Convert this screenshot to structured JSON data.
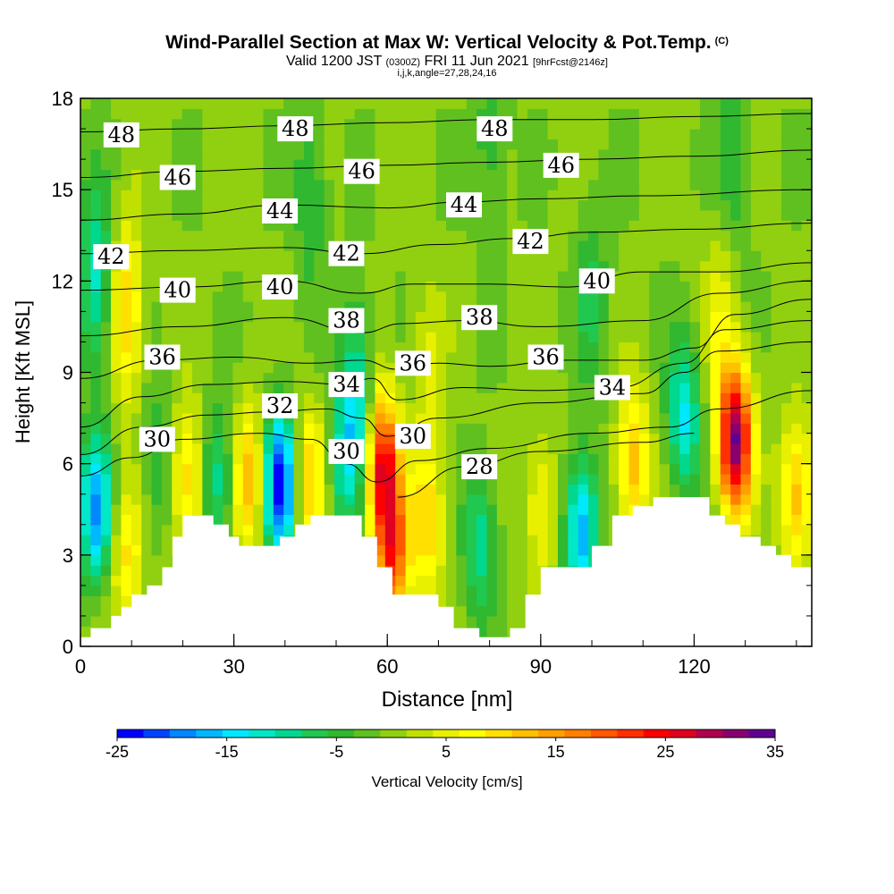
{
  "header": {
    "title": "Wind-Parallel Section at Max W: Vertical Velocity & Pot.Temp.",
    "copyright": "(C)",
    "valid_prefix": "Valid 1200 JST",
    "valid_utc": "(0300Z)",
    "valid_date": "FRI 11 Jun 2021",
    "forecast": "[9hrFcst@2146z]",
    "indices": "i,j,k,angle=27,28,24,16"
  },
  "chart_data": {
    "type": "heatmap",
    "xlabel": "Distance [nm]",
    "ylabel": "Height [Kft MSL]",
    "xlim": [
      0,
      143
    ],
    "ylim": [
      0,
      18
    ],
    "x_ticks": [
      0,
      30,
      60,
      90,
      120
    ],
    "y_ticks": [
      0,
      3,
      6,
      9,
      12,
      15,
      18
    ],
    "colorbar": {
      "label": "Vertical Velocity [cm/s]",
      "min": -25,
      "max": 35,
      "step": 2.5,
      "tick_labels": [
        "-25",
        "-15",
        "-5",
        "5",
        "15",
        "25",
        "35"
      ],
      "colors": [
        "#0000ff",
        "#0044ff",
        "#0088ff",
        "#00b8ff",
        "#00e8ff",
        "#00e8c8",
        "#00d890",
        "#20c850",
        "#30b830",
        "#60c020",
        "#90d010",
        "#c0e000",
        "#e8f000",
        "#ffff00",
        "#ffe000",
        "#ffc000",
        "#ffa000",
        "#ff8000",
        "#ff5800",
        "#ff3000",
        "#ff0000",
        "#e00020",
        "#b00050",
        "#880070",
        "#600090"
      ]
    },
    "terrain_kft": [
      [
        0,
        0.3
      ],
      [
        2,
        0.3
      ],
      [
        2,
        0.6
      ],
      [
        6,
        0.6
      ],
      [
        6,
        1.0
      ],
      [
        8,
        1.0
      ],
      [
        8,
        1.3
      ],
      [
        10,
        1.3
      ],
      [
        10,
        1.7
      ],
      [
        13,
        1.7
      ],
      [
        13,
        2.0
      ],
      [
        16,
        2.0
      ],
      [
        16,
        2.6
      ],
      [
        18,
        2.6
      ],
      [
        18,
        3.6
      ],
      [
        20,
        3.6
      ],
      [
        20,
        4.3
      ],
      [
        26,
        4.3
      ],
      [
        26,
        4.0
      ],
      [
        29,
        4.0
      ],
      [
        29,
        3.6
      ],
      [
        31,
        3.6
      ],
      [
        31,
        3.3
      ],
      [
        39,
        3.3
      ],
      [
        39,
        3.6
      ],
      [
        42,
        3.6
      ],
      [
        42,
        4.0
      ],
      [
        45,
        4.0
      ],
      [
        45,
        4.3
      ],
      [
        55,
        4.3
      ],
      [
        55,
        3.6
      ],
      [
        58,
        3.6
      ],
      [
        58,
        2.6
      ],
      [
        61,
        2.6
      ],
      [
        61,
        1.7
      ],
      [
        70,
        1.7
      ],
      [
        70,
        1.3
      ],
      [
        73,
        1.3
      ],
      [
        73,
        0.6
      ],
      [
        78,
        0.6
      ],
      [
        78,
        0.3
      ],
      [
        84,
        0.3
      ],
      [
        84,
        0.6
      ],
      [
        87,
        0.6
      ],
      [
        87,
        1.7
      ],
      [
        90,
        1.7
      ],
      [
        90,
        2.6
      ],
      [
        100,
        2.6
      ],
      [
        100,
        3.3
      ],
      [
        104,
        3.3
      ],
      [
        104,
        4.3
      ],
      [
        108,
        4.3
      ],
      [
        108,
        4.6
      ],
      [
        112,
        4.6
      ],
      [
        112,
        4.9
      ],
      [
        123,
        4.9
      ],
      [
        123,
        4.3
      ],
      [
        126,
        4.3
      ],
      [
        126,
        4.0
      ],
      [
        129,
        4.0
      ],
      [
        129,
        3.6
      ],
      [
        133,
        3.6
      ],
      [
        133,
        3.3
      ],
      [
        136,
        3.3
      ],
      [
        136,
        3.0
      ],
      [
        139,
        3.0
      ],
      [
        139,
        2.6
      ],
      [
        143,
        2.6
      ]
    ],
    "vertical_velocity_features": [
      {
        "x": 3,
        "y": 4.5,
        "w": -18
      },
      {
        "x": 3,
        "y": 12.0,
        "w": -12
      },
      {
        "x": 9,
        "y": 11.0,
        "w": 12
      },
      {
        "x": 9,
        "y": 3.0,
        "w": 10
      },
      {
        "x": 15,
        "y": 6.0,
        "w": -6
      },
      {
        "x": 21,
        "y": 5.5,
        "w": 12
      },
      {
        "x": 27,
        "y": 5.5,
        "w": -10
      },
      {
        "x": 33,
        "y": 5.5,
        "w": 14
      },
      {
        "x": 39,
        "y": 5.3,
        "w": -25
      },
      {
        "x": 45,
        "y": 5.5,
        "w": 12
      },
      {
        "x": 51,
        "y": 6.0,
        "w": -8
      },
      {
        "x": 54,
        "y": 8.0,
        "w": -14
      },
      {
        "x": 59,
        "y": 6.0,
        "w": 26
      },
      {
        "x": 61,
        "y": 3.0,
        "w": 22
      },
      {
        "x": 68,
        "y": 4.0,
        "w": 12
      },
      {
        "x": 78,
        "y": 3.5,
        "w": -10
      },
      {
        "x": 90,
        "y": 4.5,
        "w": 8
      },
      {
        "x": 98,
        "y": 3.8,
        "w": -18
      },
      {
        "x": 108,
        "y": 6.0,
        "w": 14
      },
      {
        "x": 118,
        "y": 7.5,
        "w": -14
      },
      {
        "x": 128,
        "y": 6.8,
        "w": 34
      },
      {
        "x": 140,
        "y": 5.0,
        "w": 14
      },
      {
        "x": 125,
        "y": 11.0,
        "w": 6
      },
      {
        "x": 100,
        "y": 11.5,
        "w": -6
      },
      {
        "x": 45,
        "y": 15.0,
        "w": -6
      },
      {
        "x": 80,
        "y": 16.5,
        "w": -5
      },
      {
        "x": 128,
        "y": 16.0,
        "w": -6
      },
      {
        "x": 68,
        "y": 9.0,
        "w": 5
      }
    ],
    "theta_contours": [
      {
        "value": 28,
        "label": "28",
        "pts": [
          [
            62,
            4.9
          ],
          [
            75,
            5.9
          ],
          [
            90,
            6.4
          ],
          [
            110,
            6.7
          ],
          [
            120,
            7.0
          ]
        ]
      },
      {
        "value": 30,
        "label": "30",
        "pts": [
          [
            0,
            5.6
          ],
          [
            10,
            6.2
          ],
          [
            20,
            6.8
          ],
          [
            35,
            7.0
          ],
          [
            45,
            6.8
          ],
          [
            52,
            6.0
          ],
          [
            58,
            5.4
          ],
          [
            66,
            6.1
          ],
          [
            80,
            6.5
          ],
          [
            100,
            7.0
          ],
          [
            115,
            7.2
          ],
          [
            125,
            7.8
          ],
          [
            143,
            8.4
          ]
        ]
      },
      {
        "value": 32,
        "label": "32",
        "pts": [
          [
            0,
            6.3
          ],
          [
            12,
            7.2
          ],
          [
            25,
            7.6
          ],
          [
            37,
            7.7
          ],
          [
            48,
            7.8
          ],
          [
            55,
            7.5
          ],
          [
            60,
            6.9
          ],
          [
            70,
            7.5
          ],
          [
            90,
            8.0
          ],
          [
            110,
            8.3
          ],
          [
            118,
            9.0
          ],
          [
            125,
            9.7
          ],
          [
            143,
            10.0
          ]
        ]
      },
      {
        "value": 34,
        "label": "34",
        "pts": [
          [
            0,
            7.2
          ],
          [
            12,
            8.2
          ],
          [
            25,
            8.6
          ],
          [
            40,
            8.7
          ],
          [
            52,
            8.6
          ],
          [
            57,
            8.8
          ],
          [
            62,
            8.1
          ],
          [
            75,
            8.5
          ],
          [
            90,
            8.4
          ],
          [
            105,
            8.5
          ],
          [
            118,
            9.3
          ],
          [
            126,
            10.4
          ],
          [
            143,
            10.7
          ]
        ]
      },
      {
        "value": 36,
        "label": "36",
        "pts": [
          [
            0,
            8.8
          ],
          [
            15,
            9.4
          ],
          [
            30,
            9.5
          ],
          [
            45,
            9.3
          ],
          [
            55,
            9.4
          ],
          [
            62,
            9.1
          ],
          [
            70,
            9.3
          ],
          [
            80,
            9.2
          ],
          [
            95,
            9.4
          ],
          [
            110,
            9.4
          ],
          [
            120,
            9.8
          ],
          [
            128,
            10.9
          ],
          [
            143,
            11.4
          ]
        ]
      },
      {
        "value": 38,
        "label": "38",
        "pts": [
          [
            0,
            10.2
          ],
          [
            20,
            10.5
          ],
          [
            40,
            10.8
          ],
          [
            55,
            10.3
          ],
          [
            63,
            10.6
          ],
          [
            75,
            10.7
          ],
          [
            90,
            10.5
          ],
          [
            110,
            10.7
          ],
          [
            125,
            11.6
          ],
          [
            143,
            12.0
          ]
        ]
      },
      {
        "value": 40,
        "label": "40",
        "pts": [
          [
            0,
            11.7
          ],
          [
            20,
            11.8
          ],
          [
            40,
            12.0
          ],
          [
            55,
            11.6
          ],
          [
            65,
            11.9
          ],
          [
            80,
            11.9
          ],
          [
            95,
            11.8
          ],
          [
            110,
            12.3
          ],
          [
            125,
            12.3
          ],
          [
            143,
            12.6
          ]
        ]
      },
      {
        "value": 42,
        "label": "42",
        "pts": [
          [
            0,
            12.9
          ],
          [
            20,
            13.0
          ],
          [
            40,
            13.1
          ],
          [
            55,
            12.9
          ],
          [
            70,
            13.2
          ],
          [
            85,
            13.4
          ],
          [
            100,
            13.6
          ],
          [
            120,
            13.7
          ],
          [
            143,
            13.9
          ]
        ]
      },
      {
        "value": 44,
        "label": "44",
        "pts": [
          [
            0,
            14.0
          ],
          [
            20,
            14.2
          ],
          [
            40,
            14.5
          ],
          [
            60,
            14.4
          ],
          [
            75,
            14.6
          ],
          [
            90,
            14.7
          ],
          [
            110,
            14.8
          ],
          [
            143,
            15.0
          ]
        ]
      },
      {
        "value": 46,
        "label": "46",
        "pts": [
          [
            0,
            15.4
          ],
          [
            20,
            15.6
          ],
          [
            40,
            15.7
          ],
          [
            60,
            15.8
          ],
          [
            80,
            15.9
          ],
          [
            100,
            16.0
          ],
          [
            120,
            16.1
          ],
          [
            143,
            16.3
          ]
        ]
      },
      {
        "value": 48,
        "label": "48",
        "pts": [
          [
            0,
            16.9
          ],
          [
            20,
            17.0
          ],
          [
            40,
            17.1
          ],
          [
            60,
            17.2
          ],
          [
            80,
            17.3
          ],
          [
            100,
            17.3
          ],
          [
            120,
            17.4
          ],
          [
            143,
            17.5
          ]
        ]
      }
    ],
    "theta_labels": [
      {
        "text": "48",
        "x": 8,
        "y": 16.8
      },
      {
        "text": "48",
        "x": 42,
        "y": 17.0
      },
      {
        "text": "48",
        "x": 81,
        "y": 17.0
      },
      {
        "text": "46",
        "x": 19,
        "y": 15.4
      },
      {
        "text": "46",
        "x": 55,
        "y": 15.6
      },
      {
        "text": "46",
        "x": 94,
        "y": 15.8
      },
      {
        "text": "44",
        "x": 39,
        "y": 14.3
      },
      {
        "text": "44",
        "x": 75,
        "y": 14.5
      },
      {
        "text": "42",
        "x": 6,
        "y": 12.8
      },
      {
        "text": "42",
        "x": 52,
        "y": 12.9
      },
      {
        "text": "42",
        "x": 88,
        "y": 13.3
      },
      {
        "text": "40",
        "x": 19,
        "y": 11.7
      },
      {
        "text": "40",
        "x": 39,
        "y": 11.8
      },
      {
        "text": "40",
        "x": 101,
        "y": 12.0
      },
      {
        "text": "38",
        "x": 52,
        "y": 10.7
      },
      {
        "text": "38",
        "x": 78,
        "y": 10.8
      },
      {
        "text": "36",
        "x": 16,
        "y": 9.5
      },
      {
        "text": "36",
        "x": 65,
        "y": 9.3
      },
      {
        "text": "36",
        "x": 91,
        "y": 9.5
      },
      {
        "text": "34",
        "x": 52,
        "y": 8.6
      },
      {
        "text": "34",
        "x": 104,
        "y": 8.5
      },
      {
        "text": "32",
        "x": 39,
        "y": 7.9
      },
      {
        "text": "30",
        "x": 15,
        "y": 6.8
      },
      {
        "text": "30",
        "x": 52,
        "y": 6.4
      },
      {
        "text": "30",
        "x": 65,
        "y": 6.9
      },
      {
        "text": "28",
        "x": 78,
        "y": 5.9
      }
    ]
  }
}
